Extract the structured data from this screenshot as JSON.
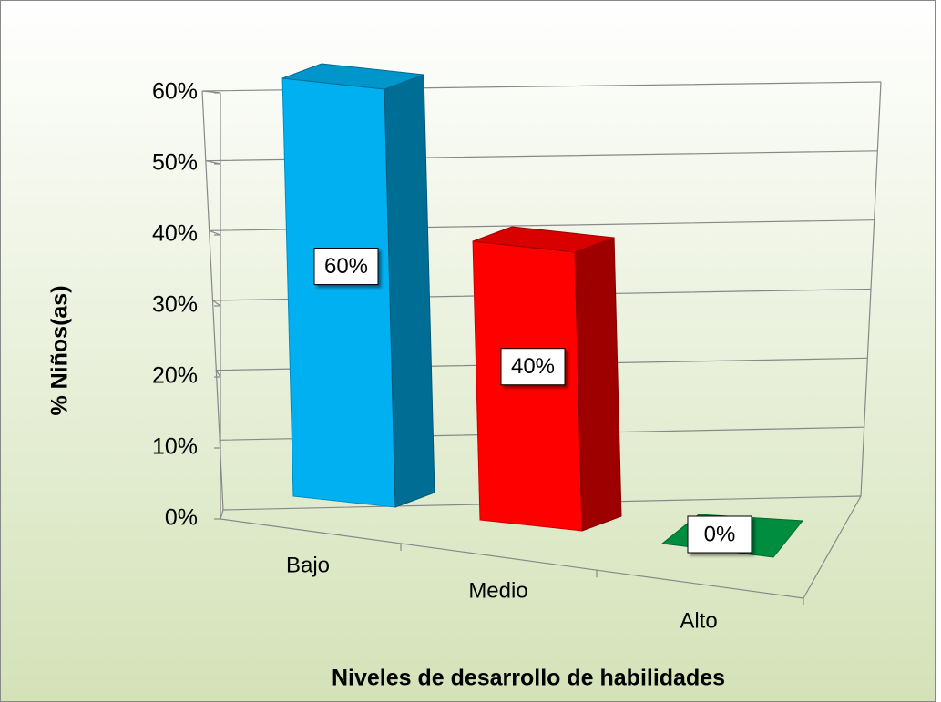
{
  "chart_data": {
    "type": "bar3d",
    "categories": [
      "Bajo",
      "Medio",
      "Alto"
    ],
    "values": [
      60,
      40,
      0
    ],
    "value_labels": [
      "60%",
      "40%",
      "0%"
    ],
    "colors": [
      "#00b0f0",
      "#ff0000",
      "#00b050"
    ],
    "xlabel": "Niveles de desarrollo de habilidades",
    "ylabel": "% Niños(as)",
    "ylim": [
      0,
      60
    ],
    "yticks": [
      {
        "value": 0,
        "label": "0%"
      },
      {
        "value": 10,
        "label": "10%"
      },
      {
        "value": 20,
        "label": "20%"
      },
      {
        "value": 30,
        "label": "30%"
      },
      {
        "value": 40,
        "label": "40%"
      },
      {
        "value": 50,
        "label": "50%"
      },
      {
        "value": 60,
        "label": "60%"
      }
    ],
    "grid": true
  }
}
